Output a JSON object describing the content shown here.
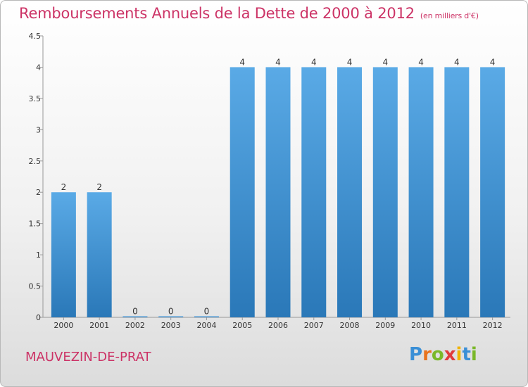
{
  "header": {
    "title": "Remboursements Annuels de la Dette de 2000 à 2012",
    "unit": "(en milliers d'€)"
  },
  "footer": {
    "commune": "MAUVEZIN-DE-PRAT",
    "logo_text": "Proxiti"
  },
  "colors": {
    "title": "#cc3366",
    "bar_top": "#5aaae6",
    "bar_bottom": "#2a78b8"
  },
  "chart_data": {
    "type": "bar",
    "categories": [
      "2000",
      "2001",
      "2002",
      "2003",
      "2004",
      "2005",
      "2006",
      "2007",
      "2008",
      "2009",
      "2010",
      "2011",
      "2012"
    ],
    "values": [
      2,
      2,
      0,
      0,
      0,
      4,
      4,
      4,
      4,
      4,
      4,
      4,
      4
    ],
    "data_labels": [
      "2",
      "2",
      "0",
      "0",
      "0",
      "4",
      "4",
      "4",
      "4",
      "4",
      "4",
      "4",
      "4"
    ],
    "ylim": [
      0,
      4.5
    ],
    "yticks": [
      0,
      0.5,
      1,
      1.5,
      2,
      2.5,
      3,
      3.5,
      4,
      4.5
    ],
    "ytick_labels": [
      "0",
      "0.5",
      "1",
      "1.5",
      "2",
      "2.5",
      "3",
      "3.5",
      "4",
      "4.5"
    ],
    "grid": false,
    "legend": "none"
  }
}
